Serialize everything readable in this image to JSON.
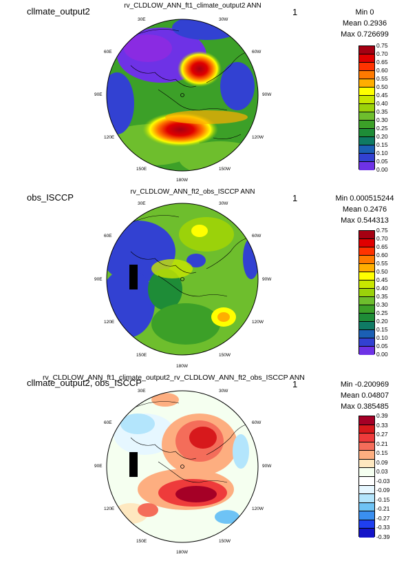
{
  "panels": [
    {
      "name": "cllmate_output2",
      "title": "rv_CLDLOW_ANN_ft1_climate_output2  ANN",
      "units": "1",
      "stats": {
        "min": "Min 0",
        "mean": "Mean 0.2936",
        "max": "Max 0.726699"
      },
      "lon_labels": [
        "30E",
        "30W",
        "60E",
        "60W",
        "90E",
        "90W",
        "120E",
        "120W",
        "150E",
        "150W",
        "180W"
      ],
      "colorbar": {
        "ticks": [
          "0.75",
          "0.70",
          "0.65",
          "0.60",
          "0.55",
          "0.50",
          "0.45",
          "0.40",
          "0.35",
          "0.30",
          "0.25",
          "0.20",
          "0.15",
          "0.10",
          "0.05",
          "0.00"
        ],
        "colors": [
          "#a50012",
          "#e00000",
          "#ff3300",
          "#ff7a00",
          "#ffae00",
          "#ffff00",
          "#c8e600",
          "#9bd20a",
          "#6ebe2d",
          "#3ca028",
          "#1e8c37",
          "#0f7a64",
          "#1b5fb4",
          "#3241d2",
          "#6e32e6"
        ]
      }
    },
    {
      "name": "obs_ISCCP",
      "title": "rv_CLDLOW_ANN_ft2_obs_ISCCP  ANN",
      "units": "1",
      "stats": {
        "min": "Min 0.000515244",
        "mean": "Mean 0.2476",
        "max": "Max 0.544313"
      },
      "lon_labels": [
        "30E",
        "30W",
        "60E",
        "60W",
        "90E",
        "90W",
        "120E",
        "120W",
        "150E",
        "150W",
        "180W"
      ],
      "colorbar": {
        "ticks": [
          "0.75",
          "0.70",
          "0.65",
          "0.60",
          "0.55",
          "0.50",
          "0.45",
          "0.40",
          "0.35",
          "0.30",
          "0.25",
          "0.20",
          "0.15",
          "0.10",
          "0.05",
          "0.00"
        ],
        "colors": [
          "#a50012",
          "#e00000",
          "#ff3300",
          "#ff7a00",
          "#ffae00",
          "#ffff00",
          "#c8e600",
          "#9bd20a",
          "#6ebe2d",
          "#3ca028",
          "#1e8c37",
          "#0f7a64",
          "#1b5fb4",
          "#3241d2",
          "#6e32e6"
        ]
      }
    },
    {
      "name": "cllmate_output2, obs_ISCCP",
      "title": "rv_CLDLOW_ANN_ft1_climate_output2_rv_CLDLOW_ANN_ft2_obs_ISCCP  ANN",
      "units": "1",
      "stats": {
        "min": "Min -0.200969",
        "mean": "Mean 0.04807",
        "max": "Max 0.385485"
      },
      "lon_labels": [
        "30E",
        "30W",
        "60E",
        "60W",
        "90E",
        "90W",
        "120E",
        "120W",
        "150E",
        "150W",
        "180W"
      ],
      "colorbar": {
        "ticks": [
          "0.39",
          "0.33",
          "0.27",
          "0.21",
          "0.15",
          "0.09",
          "0.03",
          "-0.03",
          "-0.09",
          "-0.15",
          "-0.21",
          "-0.27",
          "-0.33",
          "-0.39"
        ],
        "colors": [
          "#a50026",
          "#d7191c",
          "#ee3b3b",
          "#f46d5a",
          "#fdae80",
          "#fee8c0",
          "#f5fff0",
          "#ffffff",
          "#e6f7ff",
          "#b3e5fc",
          "#6ec3f5",
          "#3a8ff0",
          "#1f3ff0",
          "#1414c8"
        ]
      }
    }
  ]
}
